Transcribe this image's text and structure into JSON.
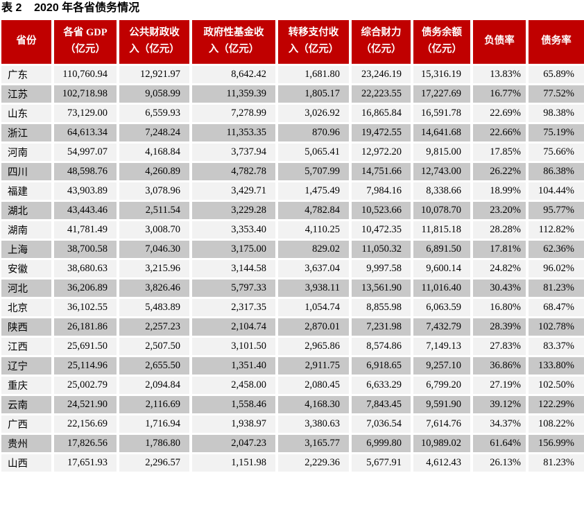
{
  "title": "表 2    2020 年各省债务情况",
  "colors": {
    "header_bg": "#C00000",
    "row_light": "#F2F2F2",
    "row_dark": "#C8C8C8",
    "header_text": "#FFFFFF"
  },
  "table": {
    "columns": [
      {
        "key": "province",
        "label": "省份"
      },
      {
        "key": "gdp",
        "label": "各省 GDP\n（亿元）"
      },
      {
        "key": "public_revenue",
        "label": "公共财政收\n入（亿元）"
      },
      {
        "key": "fund_revenue",
        "label": "政府性基金收\n入（亿元）"
      },
      {
        "key": "transfer_income",
        "label": "转移支付收\n入（亿元）"
      },
      {
        "key": "fiscal_strength",
        "label": "综合财力\n（亿元）"
      },
      {
        "key": "debt_balance",
        "label": "债务余额\n（亿元）"
      },
      {
        "key": "liability_ratio",
        "label": "负债率"
      },
      {
        "key": "debt_rate",
        "label": "债务率"
      }
    ],
    "rows": [
      [
        "广东",
        "110,760.94",
        "12,921.97",
        "8,642.42",
        "1,681.80",
        "23,246.19",
        "15,316.19",
        "13.83%",
        "65.89%"
      ],
      [
        "江苏",
        "102,718.98",
        "9,058.99",
        "11,359.39",
        "1,805.17",
        "22,223.55",
        "17,227.69",
        "16.77%",
        "77.52%"
      ],
      [
        "山东",
        "73,129.00",
        "6,559.93",
        "7,278.99",
        "3,026.92",
        "16,865.84",
        "16,591.78",
        "22.69%",
        "98.38%"
      ],
      [
        "浙江",
        "64,613.34",
        "7,248.24",
        "11,353.35",
        "870.96",
        "19,472.55",
        "14,641.68",
        "22.66%",
        "75.19%"
      ],
      [
        "河南",
        "54,997.07",
        "4,168.84",
        "3,737.94",
        "5,065.41",
        "12,972.20",
        "9,815.00",
        "17.85%",
        "75.66%"
      ],
      [
        "四川",
        "48,598.76",
        "4,260.89",
        "4,782.78",
        "5,707.99",
        "14,751.66",
        "12,743.00",
        "26.22%",
        "86.38%"
      ],
      [
        "福建",
        "43,903.89",
        "3,078.96",
        "3,429.71",
        "1,475.49",
        "7,984.16",
        "8,338.66",
        "18.99%",
        "104.44%"
      ],
      [
        "湖北",
        "43,443.46",
        "2,511.54",
        "3,229.28",
        "4,782.84",
        "10,523.66",
        "10,078.70",
        "23.20%",
        "95.77%"
      ],
      [
        "湖南",
        "41,781.49",
        "3,008.70",
        "3,353.40",
        "4,110.25",
        "10,472.35",
        "11,815.18",
        "28.28%",
        "112.82%"
      ],
      [
        "上海",
        "38,700.58",
        "7,046.30",
        "3,175.00",
        "829.02",
        "11,050.32",
        "6,891.50",
        "17.81%",
        "62.36%"
      ],
      [
        "安徽",
        "38,680.63",
        "3,215.96",
        "3,144.58",
        "3,637.04",
        "9,997.58",
        "9,600.14",
        "24.82%",
        "96.02%"
      ],
      [
        "河北",
        "36,206.89",
        "3,826.46",
        "5,797.33",
        "3,938.11",
        "13,561.90",
        "11,016.40",
        "30.43%",
        "81.23%"
      ],
      [
        "北京",
        "36,102.55",
        "5,483.89",
        "2,317.35",
        "1,054.74",
        "8,855.98",
        "6,063.59",
        "16.80%",
        "68.47%"
      ],
      [
        "陕西",
        "26,181.86",
        "2,257.23",
        "2,104.74",
        "2,870.01",
        "7,231.98",
        "7,432.79",
        "28.39%",
        "102.78%"
      ],
      [
        "江西",
        "25,691.50",
        "2,507.50",
        "3,101.50",
        "2,965.86",
        "8,574.86",
        "7,149.13",
        "27.83%",
        "83.37%"
      ],
      [
        "辽宁",
        "25,114.96",
        "2,655.50",
        "1,351.40",
        "2,911.75",
        "6,918.65",
        "9,257.10",
        "36.86%",
        "133.80%"
      ],
      [
        "重庆",
        "25,002.79",
        "2,094.84",
        "2,458.00",
        "2,080.45",
        "6,633.29",
        "6,799.20",
        "27.19%",
        "102.50%"
      ],
      [
        "云南",
        "24,521.90",
        "2,116.69",
        "1,558.46",
        "4,168.30",
        "7,843.45",
        "9,591.90",
        "39.12%",
        "122.29%"
      ],
      [
        "广西",
        "22,156.69",
        "1,716.94",
        "1,938.97",
        "3,380.63",
        "7,036.54",
        "7,614.76",
        "34.37%",
        "108.22%"
      ],
      [
        "贵州",
        "17,826.56",
        "1,786.80",
        "2,047.23",
        "3,165.77",
        "6,999.80",
        "10,989.02",
        "61.64%",
        "156.99%"
      ],
      [
        "山西",
        "17,651.93",
        "2,296.57",
        "1,151.98",
        "2,229.36",
        "5,677.91",
        "4,612.43",
        "26.13%",
        "81.23%"
      ]
    ]
  }
}
